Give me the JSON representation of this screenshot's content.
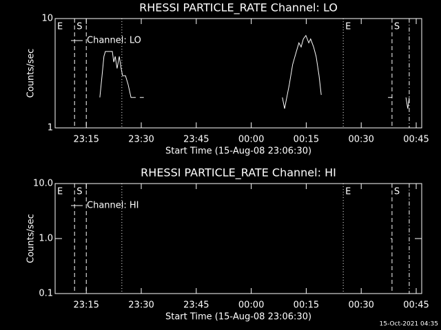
{
  "footer": "15-Oct-2021 04:35",
  "chart_data": [
    {
      "type": "line",
      "title": "RHESSI PARTICLE_RATE Channel: LO",
      "x_label": "Start Time (15-Aug-08 23:06:30)",
      "y_label": "Counts/sec",
      "log_scale": true,
      "legend": "upper left",
      "xlim": [
        0,
        100
      ],
      "ylim": [
        1,
        10
      ],
      "yticks": [
        1,
        10
      ],
      "xticks": [
        {
          "value": 8.5,
          "label": "23:15"
        },
        {
          "value": 23.5,
          "label": "23:30"
        },
        {
          "value": 38.5,
          "label": "23:45"
        },
        {
          "value": 53.5,
          "label": "00:00"
        },
        {
          "value": 68.5,
          "label": "00:15"
        },
        {
          "value": 83.5,
          "label": "00:30"
        },
        {
          "value": 98.5,
          "label": "00:45"
        }
      ],
      "markers": [
        {
          "x": 0,
          "label": "E",
          "style": "solid"
        },
        {
          "x": 5.3,
          "label": "S",
          "style": "dashed"
        },
        {
          "x": 8.5,
          "style": "dashed"
        },
        {
          "x": 18.2,
          "style": "dotted"
        },
        {
          "x": 78.6,
          "label": "E",
          "style": "dotted"
        },
        {
          "x": 91.9,
          "label": "S",
          "style": "dashed"
        },
        {
          "x": 96.6,
          "style": "dashdot"
        }
      ],
      "series": [
        {
          "name": "Channel: LO",
          "color": "#ffffff",
          "x": [
            12.2,
            12.8,
            13.3,
            13.7,
            15.6,
            16.0,
            16.4,
            16.9,
            17.5,
            18.0,
            18.4,
            19.2,
            19.9,
            20.7,
            21.6,
            22.0,
            22.5,
            23.1,
            24.2,
            25.0,
            62.0,
            62.6,
            63.2,
            63.9,
            64.8,
            65.8,
            66.5,
            67.1,
            67.7,
            68.4,
            69.2,
            69.7,
            70.5,
            71.2,
            72.0,
            72.6,
            80.0,
            90.8,
            91.9,
            93.0,
            95.7,
            96.2,
            96.6
          ],
          "values": [
            1.9,
            3,
            4.5,
            5,
            5,
            4,
            4.5,
            3.5,
            4.5,
            3.5,
            3,
            3,
            2.5,
            1.9,
            1.9,
            1.9,
            null,
            1.9,
            1.9,
            null,
            1.9,
            1.5,
            1.9,
            2.5,
            3.8,
            5,
            6,
            5.5,
            6.5,
            7,
            6,
            6.5,
            5.5,
            4.5,
            3,
            2,
            null,
            1.9,
            1.9,
            null,
            1.9,
            1.5,
            1.9
          ]
        }
      ]
    },
    {
      "type": "line",
      "title": "RHESSI PARTICLE_RATE Channel: HI",
      "x_label": "Start Time (15-Aug-08 23:06:30)",
      "y_label": "Counts/sec",
      "log_scale": true,
      "legend": "upper left",
      "xlim": [
        0,
        100
      ],
      "ylim": [
        0.1,
        10
      ],
      "yticks": [
        0.1,
        {
          "value": 1,
          "label": "1.0"
        },
        {
          "value": 10,
          "label": "10.0"
        }
      ],
      "xticks": [
        {
          "value": 8.5,
          "label": "23:15"
        },
        {
          "value": 23.5,
          "label": "23:30"
        },
        {
          "value": 38.5,
          "label": "23:45"
        },
        {
          "value": 53.5,
          "label": "00:00"
        },
        {
          "value": 68.5,
          "label": "00:15"
        },
        {
          "value": 83.5,
          "label": "00:30"
        },
        {
          "value": 98.5,
          "label": "00:45"
        }
      ],
      "markers": [
        {
          "x": 0,
          "label": "E",
          "style": "solid"
        },
        {
          "x": 5.3,
          "label": "S",
          "style": "dashed"
        },
        {
          "x": 8.5,
          "style": "dashed"
        },
        {
          "x": 18.2,
          "style": "dotted"
        },
        {
          "x": 78.6,
          "label": "E",
          "style": "dotted"
        },
        {
          "x": 91.9,
          "label": "S",
          "style": "dashed"
        },
        {
          "x": 96.6,
          "style": "dashdot"
        }
      ],
      "series": [
        {
          "name": "Channel: HI",
          "color": "#ffffff",
          "x": [
            91.5,
            91.9
          ],
          "values": [
            1,
            1
          ]
        }
      ]
    }
  ]
}
